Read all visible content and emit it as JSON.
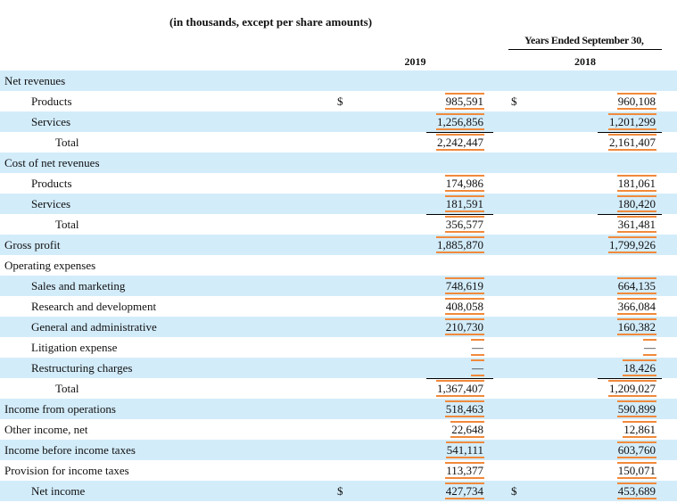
{
  "header": {
    "note": "(in thousands, except per share amounts)",
    "years_ended": "Years Ended September 30,",
    "years": [
      "2019",
      "2018"
    ]
  },
  "statement": [
    {
      "title": "Net revenues",
      "items": [
        {
          "label": "Products",
          "symbols": [
            "$",
            "$"
          ],
          "values": [
            "985,591",
            "960,108"
          ]
        },
        {
          "label": "Services",
          "values": [
            "1,256,856",
            "1,201,299"
          ]
        }
      ],
      "total": {
        "label": "Total",
        "values": [
          "2,242,447",
          "2,161,407"
        ]
      }
    },
    {
      "title": "Cost of net revenues",
      "items": [
        {
          "label": "Products",
          "values": [
            "174,986",
            "181,061"
          ]
        },
        {
          "label": "Services",
          "values": [
            "181,591",
            "180,420"
          ]
        }
      ],
      "total": {
        "label": "Total",
        "values": [
          "356,577",
          "361,481"
        ]
      }
    },
    {
      "label": "Gross profit",
      "values": [
        "1,885,870",
        "1,799,926"
      ]
    },
    {
      "title": "Operating expenses",
      "items": [
        {
          "label": "Sales and marketing",
          "values": [
            "748,619",
            "664,135"
          ]
        },
        {
          "label": "Research and development",
          "values": [
            "408,058",
            "366,084"
          ]
        },
        {
          "label": "General and administrative",
          "values": [
            "210,730",
            "160,382"
          ]
        },
        {
          "label": "Litigation expense",
          "values": [
            "—",
            "—"
          ]
        },
        {
          "label": "Restructuring charges",
          "values": [
            "—",
            "18,426"
          ]
        }
      ],
      "total": {
        "label": "Total",
        "values": [
          "1,367,407",
          "1,209,027"
        ]
      }
    },
    {
      "label": "Income from operations",
      "values": [
        "518,463",
        "590,899"
      ]
    },
    {
      "label": "Other income, net",
      "values": [
        "22,648",
        "12,861"
      ]
    },
    {
      "label": "Income before income taxes",
      "values": [
        "541,111",
        "603,760"
      ]
    },
    {
      "label": "Provision for income taxes",
      "values": [
        "113,377",
        "150,071"
      ]
    }
  ],
  "net_income": {
    "label": "Net income",
    "symbols": [
      "$",
      "$"
    ],
    "values": [
      "427,734",
      "453,689"
    ]
  }
}
